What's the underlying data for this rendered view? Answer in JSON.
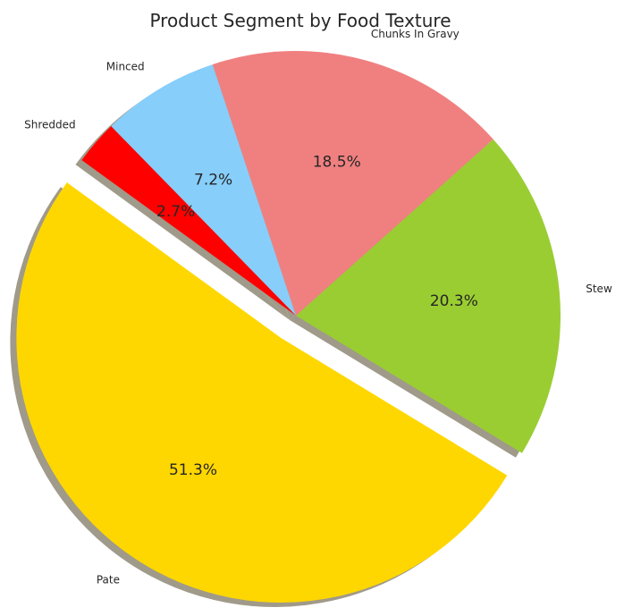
{
  "chart_data": {
    "type": "pie",
    "title": "Product Segment by Food Texture",
    "slices": [
      {
        "label": "Stew",
        "value": 20.3,
        "pct_label": "20.3%",
        "color": "#9acd32",
        "explode": false
      },
      {
        "label": "Chunks In Gravy",
        "value": 18.5,
        "pct_label": "18.5%",
        "color": "#f08080",
        "explode": false
      },
      {
        "label": "Minced",
        "value": 7.2,
        "pct_label": "7.2%",
        "color": "#87cefa",
        "explode": false
      },
      {
        "label": "Shredded",
        "value": 2.7,
        "pct_label": "2.7%",
        "color": "#ff0000",
        "explode": false
      },
      {
        "label": "Pate",
        "value": 51.3,
        "pct_label": "51.3%",
        "color": "#ffd700",
        "explode": true
      }
    ],
    "start_angle_deg": -31.3,
    "direction": "counterclockwise",
    "shadow": true,
    "shadow_color": "#a09a8a"
  }
}
